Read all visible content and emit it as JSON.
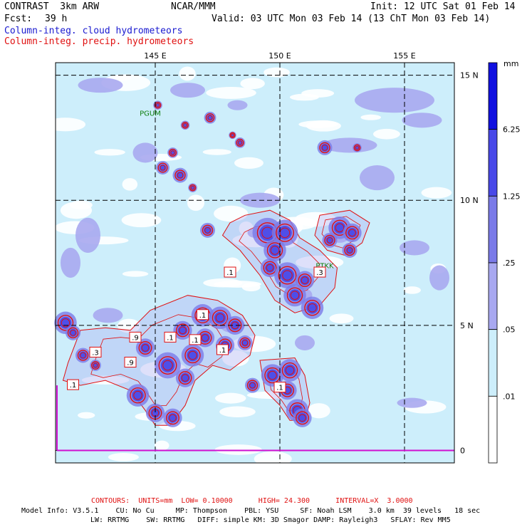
{
  "header": {
    "model": "CONTRAST  3km ARW",
    "center": "NCAR/MMM",
    "init": "Init: 12 UTC Sat 01 Feb 14",
    "fcst_label": "Fcst:",
    "fcst_value": "39 h",
    "valid": "Valid: 03 UTC Mon 03 Feb 14 (13 ChT Mon 03 Feb 14)",
    "field1": "Column-integ. cloud hydrometeors",
    "field2": "Column-integ. precip. hydrometeors"
  },
  "chart_data": {
    "type": "heatmap",
    "title": "Column-integ. cloud hydrometeors / Column-integ. precip. hydrometeors",
    "x_ticks": [
      "145 E",
      "150 E",
      "155 E"
    ],
    "y_ticks": [
      "15 N",
      "10 N",
      "5 N",
      "0"
    ],
    "xlim": [
      141,
      157
    ],
    "ylim": [
      -0.5,
      15.5
    ],
    "lon_lines": [
      145,
      150,
      155
    ],
    "lat_lines": [
      15,
      10,
      5,
      0
    ],
    "places": [
      {
        "name": "PGUM",
        "lon": 144.8,
        "lat": 13.5
      },
      {
        "name": "PTKK",
        "lon": 151.8,
        "lat": 7.4
      }
    ],
    "contour_labels": [
      {
        "text": ".1",
        "lon": 148.0,
        "lat": 7.1
      },
      {
        "text": ".3",
        "lon": 151.6,
        "lat": 7.1
      },
      {
        "text": ".1",
        "lon": 146.9,
        "lat": 5.4
      },
      {
        "text": ".9",
        "lon": 144.2,
        "lat": 4.5
      },
      {
        "text": ".1",
        "lon": 145.6,
        "lat": 4.5
      },
      {
        "text": ".1",
        "lon": 146.6,
        "lat": 4.4
      },
      {
        "text": ".1",
        "lon": 147.7,
        "lat": 4.0
      },
      {
        "text": ".3",
        "lon": 142.6,
        "lat": 3.9
      },
      {
        "text": ".9",
        "lon": 144.0,
        "lat": 3.5
      },
      {
        "text": ".1",
        "lon": 141.7,
        "lat": 2.6
      },
      {
        "text": ".1",
        "lon": 150.0,
        "lat": 2.5
      }
    ],
    "legend": {
      "unit": "mm",
      "levels": [
        "6.25",
        "1.25",
        ".25",
        ".05",
        ".01"
      ],
      "colors": [
        "#1010e0",
        "#4848e8",
        "#7a7ae8",
        "#a8a8f0",
        "#cdeefb",
        "#ffffff"
      ]
    },
    "cloud_patches": [
      {
        "lon": 142.8,
        "lat": 14.6,
        "rx": 0.9,
        "ry": 0.3,
        "lvl": 3
      },
      {
        "lon": 146.3,
        "lat": 14.4,
        "rx": 0.7,
        "ry": 0.3,
        "lvl": 3
      },
      {
        "lon": 154.6,
        "lat": 14.0,
        "rx": 1.6,
        "ry": 0.5,
        "lvl": 3
      },
      {
        "lon": 155.7,
        "lat": 13.2,
        "rx": 0.8,
        "ry": 0.3,
        "lvl": 3
      },
      {
        "lon": 152.8,
        "lat": 12.2,
        "rx": 1.1,
        "ry": 0.3,
        "lvl": 3
      },
      {
        "lon": 144.6,
        "lat": 11.9,
        "rx": 0.5,
        "ry": 0.4,
        "lvl": 3
      },
      {
        "lon": 153.9,
        "lat": 10.9,
        "rx": 0.7,
        "ry": 0.5,
        "lvl": 3
      },
      {
        "lon": 149.2,
        "lat": 10.0,
        "rx": 0.8,
        "ry": 0.3,
        "lvl": 3
      },
      {
        "lon": 142.3,
        "lat": 8.6,
        "rx": 0.5,
        "ry": 0.7,
        "lvl": 3
      },
      {
        "lon": 141.6,
        "lat": 7.5,
        "rx": 0.4,
        "ry": 0.6,
        "lvl": 3
      },
      {
        "lon": 143.1,
        "lat": 5.4,
        "rx": 0.6,
        "ry": 0.3,
        "lvl": 3
      },
      {
        "lon": 148.1,
        "lat": 5.0,
        "rx": 0.5,
        "ry": 0.3,
        "lvl": 3
      },
      {
        "lon": 149.0,
        "lat": 8.7,
        "rx": 0.3,
        "ry": 0.2,
        "lvl": 3
      },
      {
        "lon": 150.9,
        "lat": 6.2,
        "rx": 0.4,
        "ry": 0.3,
        "lvl": 3
      },
      {
        "lon": 152.4,
        "lat": 8.6,
        "rx": 0.4,
        "ry": 0.3,
        "lvl": 3
      },
      {
        "lon": 155.4,
        "lat": 8.1,
        "rx": 0.6,
        "ry": 0.3,
        "lvl": 3
      },
      {
        "lon": 156.4,
        "lat": 6.9,
        "rx": 0.4,
        "ry": 0.5,
        "lvl": 3
      },
      {
        "lon": 151.0,
        "lat": 4.3,
        "rx": 0.4,
        "ry": 0.3,
        "lvl": 3
      },
      {
        "lon": 155.3,
        "lat": 1.9,
        "rx": 0.6,
        "ry": 0.2,
        "lvl": 3
      },
      {
        "lon": 148.3,
        "lat": 13.8,
        "rx": 0.4,
        "ry": 0.2,
        "lvl": 3
      }
    ],
    "precip_cells": [
      {
        "lon": 145.1,
        "lat": 13.8,
        "r": 0.12
      },
      {
        "lon": 147.2,
        "lat": 13.3,
        "r": 0.16
      },
      {
        "lon": 146.2,
        "lat": 13.0,
        "r": 0.12
      },
      {
        "lon": 148.4,
        "lat": 12.3,
        "r": 0.14
      },
      {
        "lon": 148.1,
        "lat": 12.6,
        "r": 0.1
      },
      {
        "lon": 145.7,
        "lat": 11.9,
        "r": 0.14
      },
      {
        "lon": 145.3,
        "lat": 11.3,
        "r": 0.18
      },
      {
        "lon": 146.0,
        "lat": 11.0,
        "r": 0.2
      },
      {
        "lon": 146.5,
        "lat": 10.5,
        "r": 0.12
      },
      {
        "lon": 151.8,
        "lat": 12.1,
        "r": 0.2
      },
      {
        "lon": 153.1,
        "lat": 12.1,
        "r": 0.12
      },
      {
        "lon": 147.1,
        "lat": 8.8,
        "r": 0.2
      },
      {
        "lon": 149.5,
        "lat": 8.7,
        "r": 0.4
      },
      {
        "lon": 150.2,
        "lat": 8.7,
        "r": 0.35
      },
      {
        "lon": 149.8,
        "lat": 8.0,
        "r": 0.3
      },
      {
        "lon": 149.6,
        "lat": 7.3,
        "r": 0.25
      },
      {
        "lon": 150.3,
        "lat": 7.0,
        "r": 0.35
      },
      {
        "lon": 150.6,
        "lat": 6.2,
        "r": 0.3
      },
      {
        "lon": 151.3,
        "lat": 5.7,
        "r": 0.3
      },
      {
        "lon": 151.0,
        "lat": 6.8,
        "r": 0.25
      },
      {
        "lon": 152.4,
        "lat": 8.9,
        "r": 0.3
      },
      {
        "lon": 152.9,
        "lat": 8.7,
        "r": 0.25
      },
      {
        "lon": 152.0,
        "lat": 8.4,
        "r": 0.2
      },
      {
        "lon": 152.8,
        "lat": 8.0,
        "r": 0.2
      },
      {
        "lon": 141.4,
        "lat": 5.1,
        "r": 0.3
      },
      {
        "lon": 141.7,
        "lat": 4.7,
        "r": 0.2
      },
      {
        "lon": 142.1,
        "lat": 3.8,
        "r": 0.2
      },
      {
        "lon": 142.6,
        "lat": 3.4,
        "r": 0.15
      },
      {
        "lon": 144.6,
        "lat": 4.1,
        "r": 0.25
      },
      {
        "lon": 145.5,
        "lat": 3.4,
        "r": 0.35
      },
      {
        "lon": 146.2,
        "lat": 2.9,
        "r": 0.25
      },
      {
        "lon": 146.5,
        "lat": 3.8,
        "r": 0.3
      },
      {
        "lon": 146.9,
        "lat": 5.4,
        "r": 0.3
      },
      {
        "lon": 147.6,
        "lat": 5.3,
        "r": 0.3
      },
      {
        "lon": 148.2,
        "lat": 5.0,
        "r": 0.25
      },
      {
        "lon": 146.1,
        "lat": 4.8,
        "r": 0.25
      },
      {
        "lon": 147.0,
        "lat": 4.5,
        "r": 0.25
      },
      {
        "lon": 147.8,
        "lat": 4.2,
        "r": 0.25
      },
      {
        "lon": 148.6,
        "lat": 4.3,
        "r": 0.2
      },
      {
        "lon": 144.3,
        "lat": 2.2,
        "r": 0.3
      },
      {
        "lon": 145.0,
        "lat": 1.5,
        "r": 0.25
      },
      {
        "lon": 145.7,
        "lat": 1.3,
        "r": 0.25
      },
      {
        "lon": 148.9,
        "lat": 2.6,
        "r": 0.2
      },
      {
        "lon": 149.7,
        "lat": 3.0,
        "r": 0.3
      },
      {
        "lon": 150.4,
        "lat": 3.2,
        "r": 0.3
      },
      {
        "lon": 150.3,
        "lat": 2.4,
        "r": 0.25
      },
      {
        "lon": 150.7,
        "lat": 1.6,
        "r": 0.3
      },
      {
        "lon": 150.9,
        "lat": 1.3,
        "r": 0.25
      }
    ],
    "precip_outline": [
      [
        [
          148.0,
          9.1
        ],
        [
          148.6,
          9.4
        ],
        [
          149.6,
          9.6
        ],
        [
          150.4,
          9.2
        ],
        [
          150.8,
          8.5
        ],
        [
          151.6,
          8.0
        ],
        [
          152.3,
          7.3
        ],
        [
          152.2,
          6.5
        ],
        [
          151.6,
          5.8
        ],
        [
          150.6,
          5.5
        ],
        [
          149.8,
          6.0
        ],
        [
          149.2,
          7.0
        ],
        [
          148.4,
          8.0
        ],
        [
          147.7,
          8.6
        ],
        [
          148.0,
          9.1
        ]
      ],
      [
        [
          151.6,
          9.4
        ],
        [
          152.8,
          9.6
        ],
        [
          153.6,
          9.1
        ],
        [
          153.3,
          8.3
        ],
        [
          152.6,
          7.8
        ],
        [
          151.9,
          8.0
        ],
        [
          151.4,
          8.6
        ],
        [
          151.6,
          9.4
        ]
      ],
      [
        [
          142.0,
          4.8
        ],
        [
          143.0,
          4.9
        ],
        [
          144.0,
          4.8
        ],
        [
          144.8,
          5.6
        ],
        [
          146.3,
          6.2
        ],
        [
          147.5,
          6.0
        ],
        [
          148.5,
          5.4
        ],
        [
          149.0,
          4.6
        ],
        [
          148.8,
          3.8
        ],
        [
          148.0,
          3.2
        ],
        [
          147.3,
          3.4
        ],
        [
          146.6,
          2.8
        ],
        [
          146.2,
          1.8
        ],
        [
          145.6,
          1.0
        ],
        [
          145.0,
          1.0
        ],
        [
          144.6,
          1.6
        ],
        [
          144.0,
          2.4
        ],
        [
          143.0,
          2.8
        ],
        [
          142.0,
          2.6
        ],
        [
          141.3,
          2.8
        ],
        [
          141.5,
          3.5
        ],
        [
          142.0,
          4.8
        ]
      ],
      [
        [
          149.2,
          3.6
        ],
        [
          150.6,
          3.7
        ],
        [
          151.0,
          3.0
        ],
        [
          151.2,
          1.9
        ],
        [
          151.0,
          1.2
        ],
        [
          150.4,
          1.2
        ],
        [
          150.0,
          1.8
        ],
        [
          149.4,
          2.4
        ],
        [
          149.2,
          3.6
        ]
      ]
    ]
  },
  "bottom": {
    "contours": "CONTOURS:  UNITS=mm  LOW= 0.10000      HIGH= 24.300      INTERVAL=X  3.0000",
    "info1": "Model Info: V3.5.1    CU: No Cu     MP: Thompson    PBL: YSU     SF: Noah LSM    3.0 km  39 levels   18 sec",
    "info2": "LW: RRTMG    SW: RRTMG   DIFF: simple KM: 3D Smagor DAMP: Rayleigh3   SFLAY: Rev MM5"
  }
}
